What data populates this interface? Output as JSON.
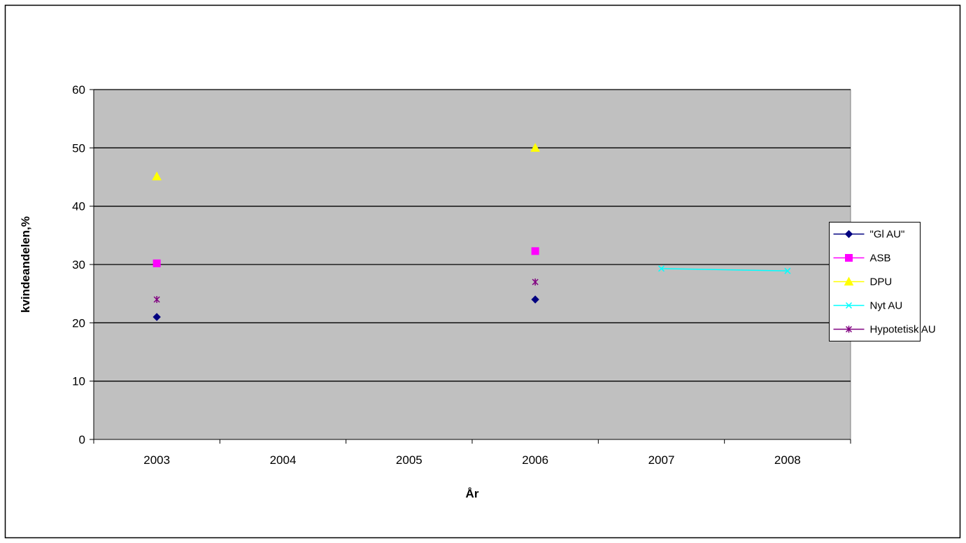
{
  "chart_data": {
    "type": "line",
    "title": "",
    "xlabel": "År",
    "ylabel": "kvindeandelen,%",
    "categories": [
      "2003",
      "2004",
      "2005",
      "2006",
      "2007",
      "2008"
    ],
    "ylim": [
      0,
      60
    ],
    "yticks": [
      "0",
      "10",
      "20",
      "30",
      "40",
      "50",
      "60"
    ],
    "grid": "horizontal",
    "plot_background": "#C0C0C0",
    "legend_position": "right",
    "series": [
      {
        "name": "\"Gl AU\"",
        "color": "#000080",
        "marker": "diamond",
        "values": [
          21,
          null,
          null,
          24,
          null,
          null
        ]
      },
      {
        "name": "ASB",
        "color": "#FF00FF",
        "marker": "square",
        "values": [
          30.2,
          null,
          null,
          32.3,
          null,
          null
        ]
      },
      {
        "name": "DPU",
        "color": "#FFFF00",
        "marker": "triangle",
        "values": [
          45.1,
          null,
          null,
          50,
          null,
          null
        ]
      },
      {
        "name": "Nyt AU",
        "color": "#00FFFF",
        "marker": "x",
        "values": [
          null,
          null,
          null,
          null,
          29.3,
          28.9
        ]
      },
      {
        "name": "Hypotetisk AU",
        "color": "#800080",
        "marker": "star",
        "values": [
          24,
          null,
          null,
          27,
          null,
          null
        ]
      }
    ]
  }
}
